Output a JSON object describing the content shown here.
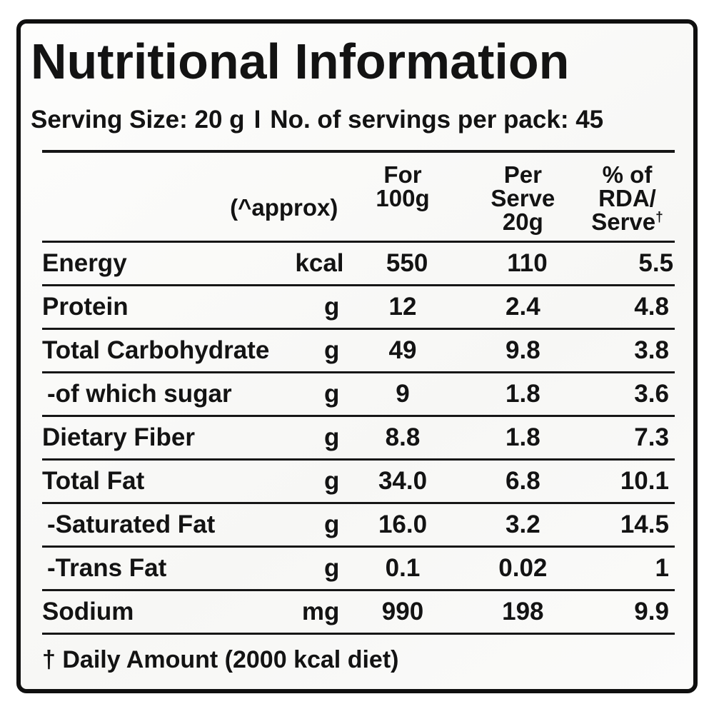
{
  "label": {
    "title": "Nutritional Information",
    "serving": {
      "size_text": "Serving Size: 20 g",
      "separator": "I",
      "per_pack_text": "No. of servings per pack: 45"
    },
    "table": {
      "header": {
        "approx": "(^approx)",
        "per_100g_lines": [
          "For",
          "100g"
        ],
        "per_serve_lines": [
          "Per",
          "Serve",
          "20g"
        ],
        "rda_lines": [
          "% of",
          "RDA/",
          "Serve"
        ],
        "dagger": "†"
      },
      "rows": [
        {
          "name": "Energy",
          "unit": "kcal",
          "per_100g": "550",
          "per_serve": "110",
          "rda_percent": "5.5"
        },
        {
          "name": "Protein",
          "unit": "g",
          "per_100g": "12",
          "per_serve": "2.4",
          "rda_percent": "4.8"
        },
        {
          "name": "Total Carbohydrate",
          "unit": "g",
          "per_100g": "49",
          "per_serve": "9.8",
          "rda_percent": "3.8"
        },
        {
          "name": "-of which sugar",
          "unit": "g",
          "per_100g": "9",
          "per_serve": "1.8",
          "rda_percent": "3.6"
        },
        {
          "name": "Dietary Fiber",
          "unit": "g",
          "per_100g": "8.8",
          "per_serve": "1.8",
          "rda_percent": "7.3"
        },
        {
          "name": "Total Fat",
          "unit": "g",
          "per_100g": "34.0",
          "per_serve": "6.8",
          "rda_percent": "10.1"
        },
        {
          "name": "-Saturated Fat",
          "unit": "g",
          "per_100g": "16.0",
          "per_serve": "3.2",
          "rda_percent": "14.5"
        },
        {
          "name": "-Trans Fat",
          "unit": "g",
          "per_100g": "0.1",
          "per_serve": "0.02",
          "rda_percent": "1"
        },
        {
          "name": "Sodium",
          "unit": "mg",
          "per_100g": "990",
          "per_serve": "198",
          "rda_percent": "9.9"
        }
      ]
    },
    "footnote": "† Daily Amount (2000 kcal diet)",
    "colors": {
      "text": "#131313",
      "border": "#0f0f0f",
      "background": "#fcfcfa"
    }
  }
}
